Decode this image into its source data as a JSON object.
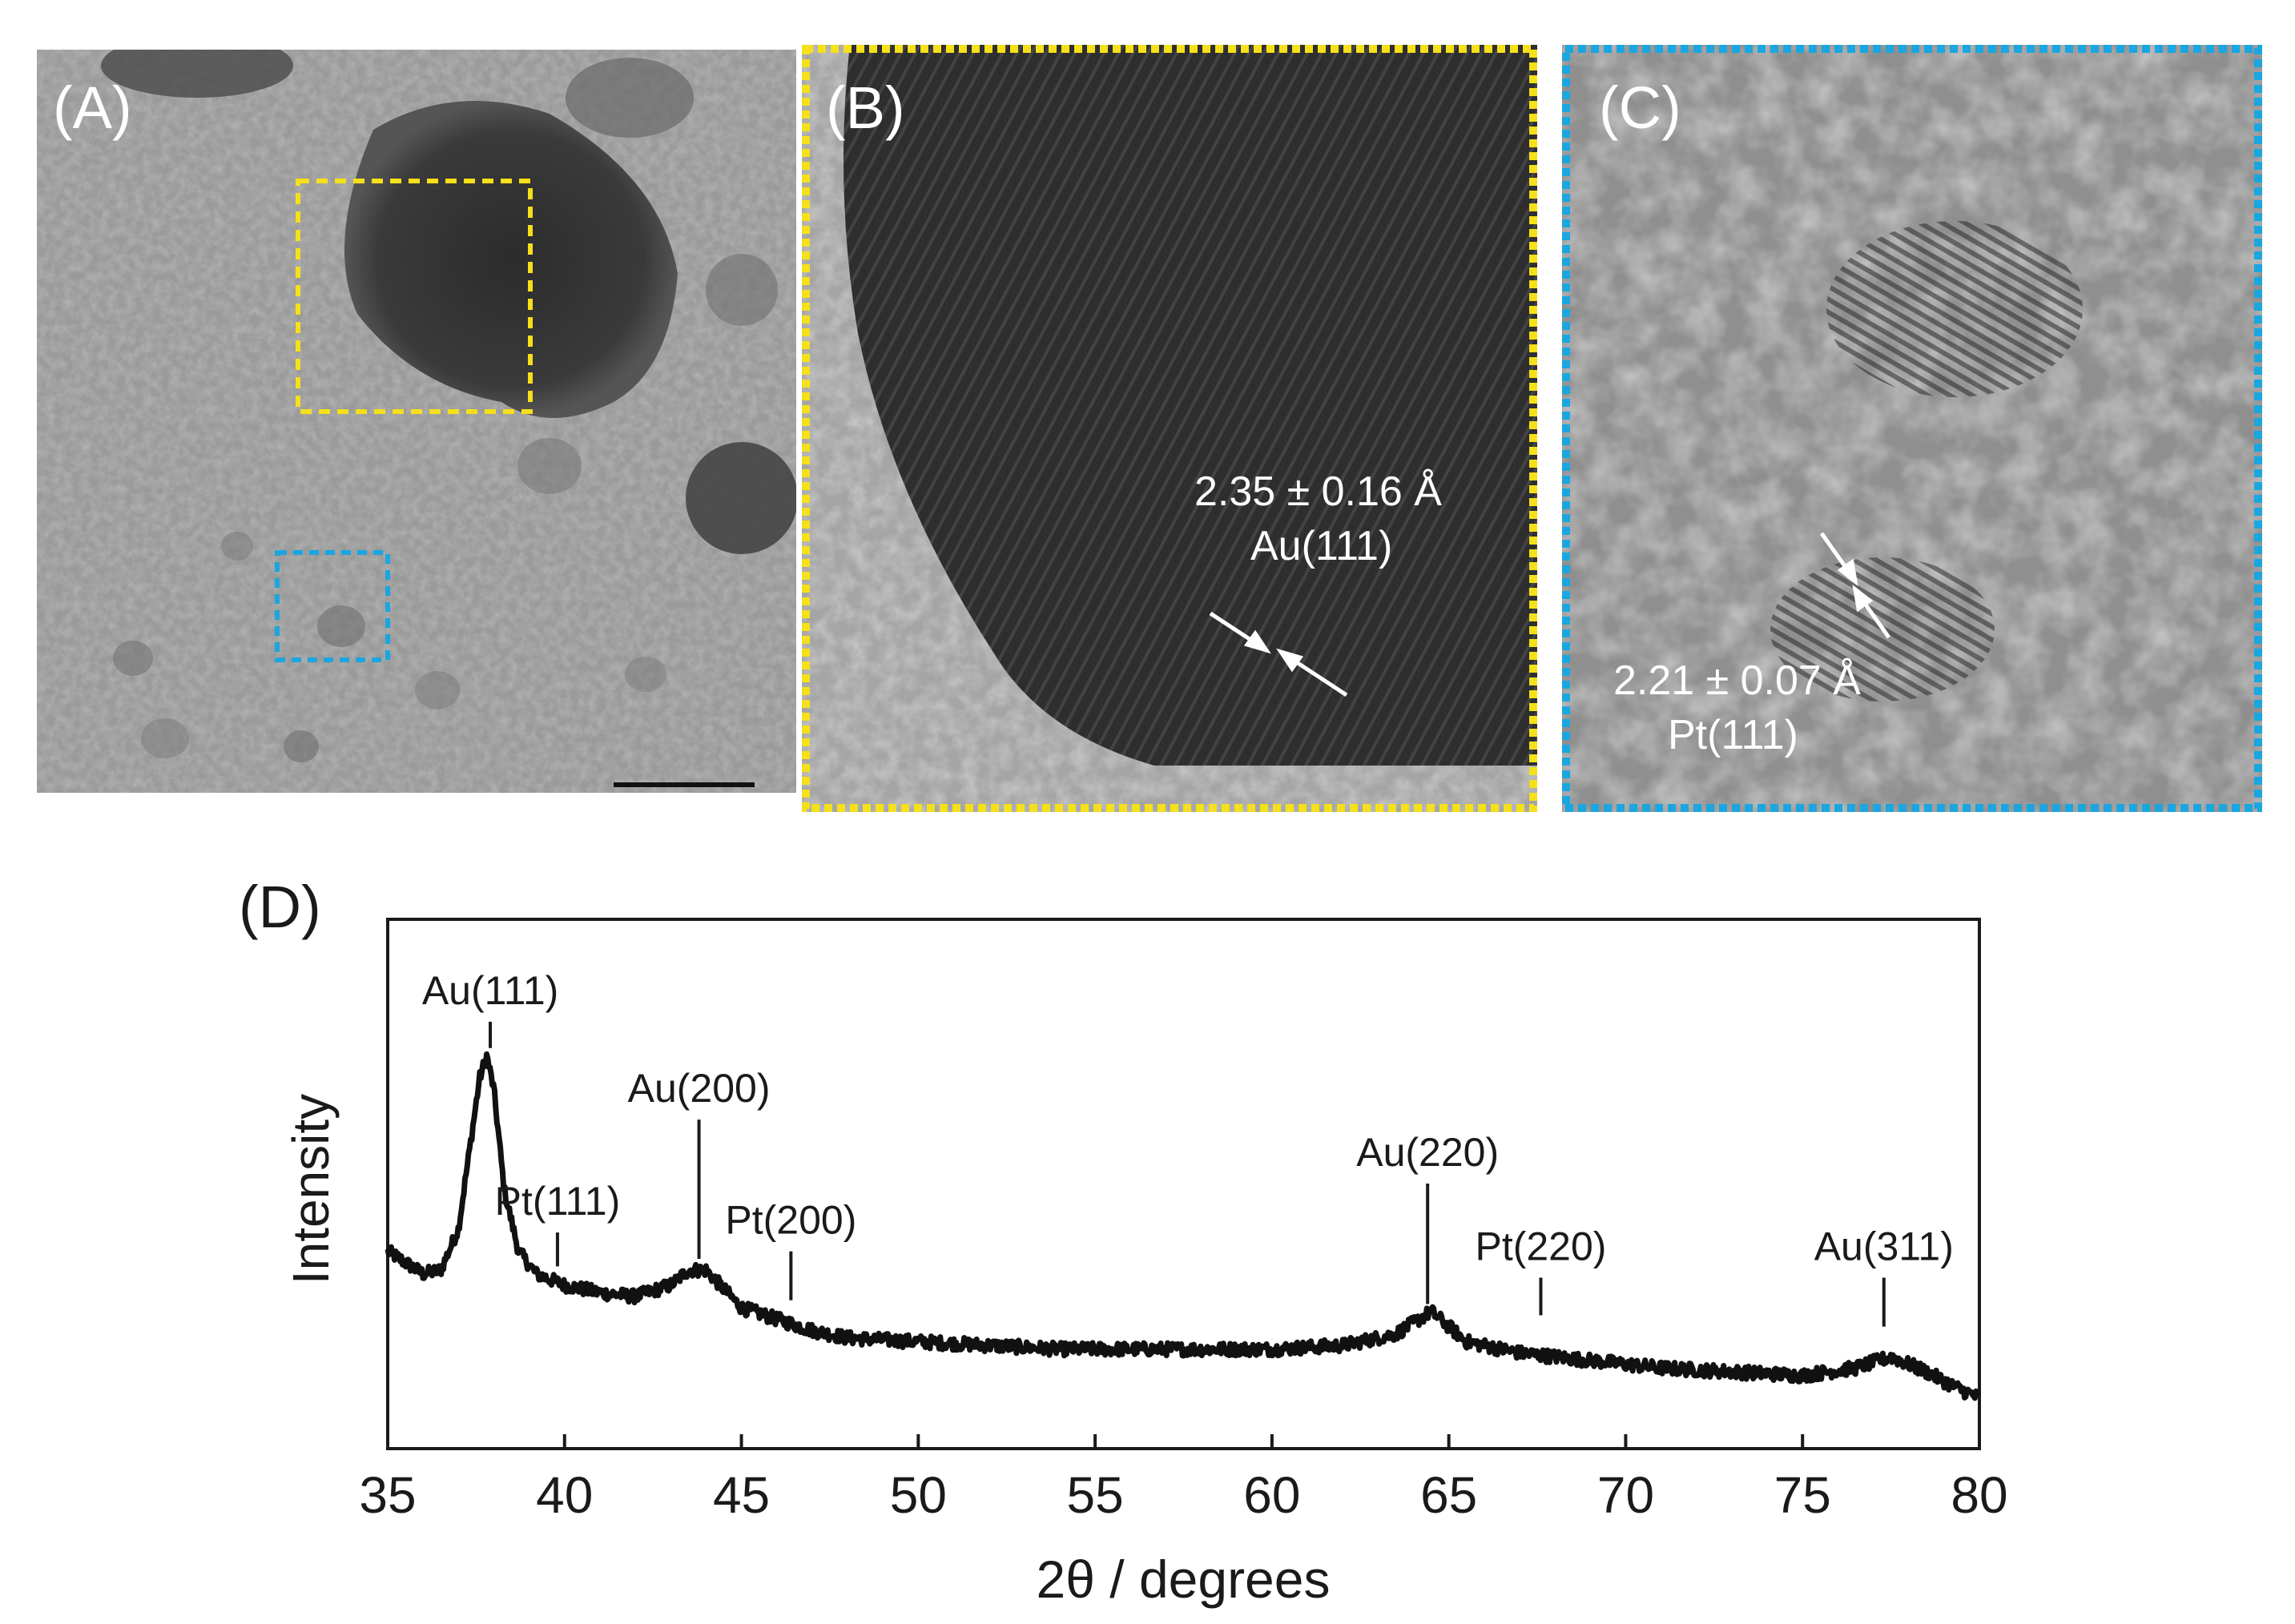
{
  "panels": {
    "a": {
      "label": "(A)",
      "box_colors": {
        "au_region": "#f5e01a",
        "pt_region": "#1aa6e0"
      }
    },
    "b": {
      "label": "(B)",
      "border_color": "#f5e01a",
      "spacing": "2.35 ± 0.16 Å",
      "plane": "Au(111)"
    },
    "c": {
      "label": "(C)",
      "border_color": "#1aa6e0",
      "spacing": "2.21 ± 0.07 Å",
      "plane": "Pt(111)"
    },
    "d": {
      "label": "(D)"
    }
  },
  "chart_data": {
    "type": "line",
    "title": "",
    "xlabel": "2θ / degrees",
    "ylabel": "Intensity",
    "xlim": [
      35,
      80
    ],
    "xticks": [
      "35",
      "40",
      "45",
      "50",
      "55",
      "60",
      "65",
      "70",
      "75",
      "80"
    ],
    "y_tick_labels": false,
    "grid": false,
    "legend": "none",
    "series": [
      {
        "x": [
          35,
          36,
          36.5,
          37,
          37.3,
          37.6,
          37.8,
          38.0,
          38.3,
          38.7,
          39.2,
          40,
          41,
          42,
          43,
          43.5,
          44,
          44.5,
          45,
          46,
          47,
          48,
          50,
          52,
          54,
          56,
          58,
          60,
          62,
          63.5,
          64.5,
          65.5,
          67,
          69,
          71,
          73,
          75,
          76.5,
          77.5,
          78.5,
          79.3,
          80
        ],
        "values": [
          0.42,
          0.36,
          0.37,
          0.48,
          0.68,
          0.88,
          0.94,
          0.85,
          0.58,
          0.42,
          0.36,
          0.33,
          0.31,
          0.3,
          0.33,
          0.37,
          0.37,
          0.32,
          0.27,
          0.24,
          0.21,
          0.19,
          0.18,
          0.17,
          0.16,
          0.16,
          0.16,
          0.16,
          0.17,
          0.2,
          0.26,
          0.18,
          0.15,
          0.13,
          0.11,
          0.1,
          0.09,
          0.11,
          0.14,
          0.1,
          0.06,
          0.03
        ]
      }
    ],
    "annotations": [
      {
        "text": "Au(111)",
        "x": 37.9,
        "tick_top": 1.03,
        "tick_bottom": 0.96
      },
      {
        "text": "Pt(111)",
        "x": 39.8,
        "tick_top": 0.47,
        "tick_bottom": 0.38
      },
      {
        "text": "Au(200)",
        "x": 43.8,
        "tick_top": 0.77,
        "tick_bottom": 0.4
      },
      {
        "text": "Pt(200)",
        "x": 46.4,
        "tick_top": 0.42,
        "tick_bottom": 0.29
      },
      {
        "text": "Au(220)",
        "x": 64.4,
        "tick_top": 0.6,
        "tick_bottom": 0.28
      },
      {
        "text": "Pt(220)",
        "x": 67.6,
        "tick_top": 0.35,
        "tick_bottom": 0.25
      },
      {
        "text": "Au(311)",
        "x": 77.3,
        "tick_top": 0.35,
        "tick_bottom": 0.22
      }
    ]
  }
}
